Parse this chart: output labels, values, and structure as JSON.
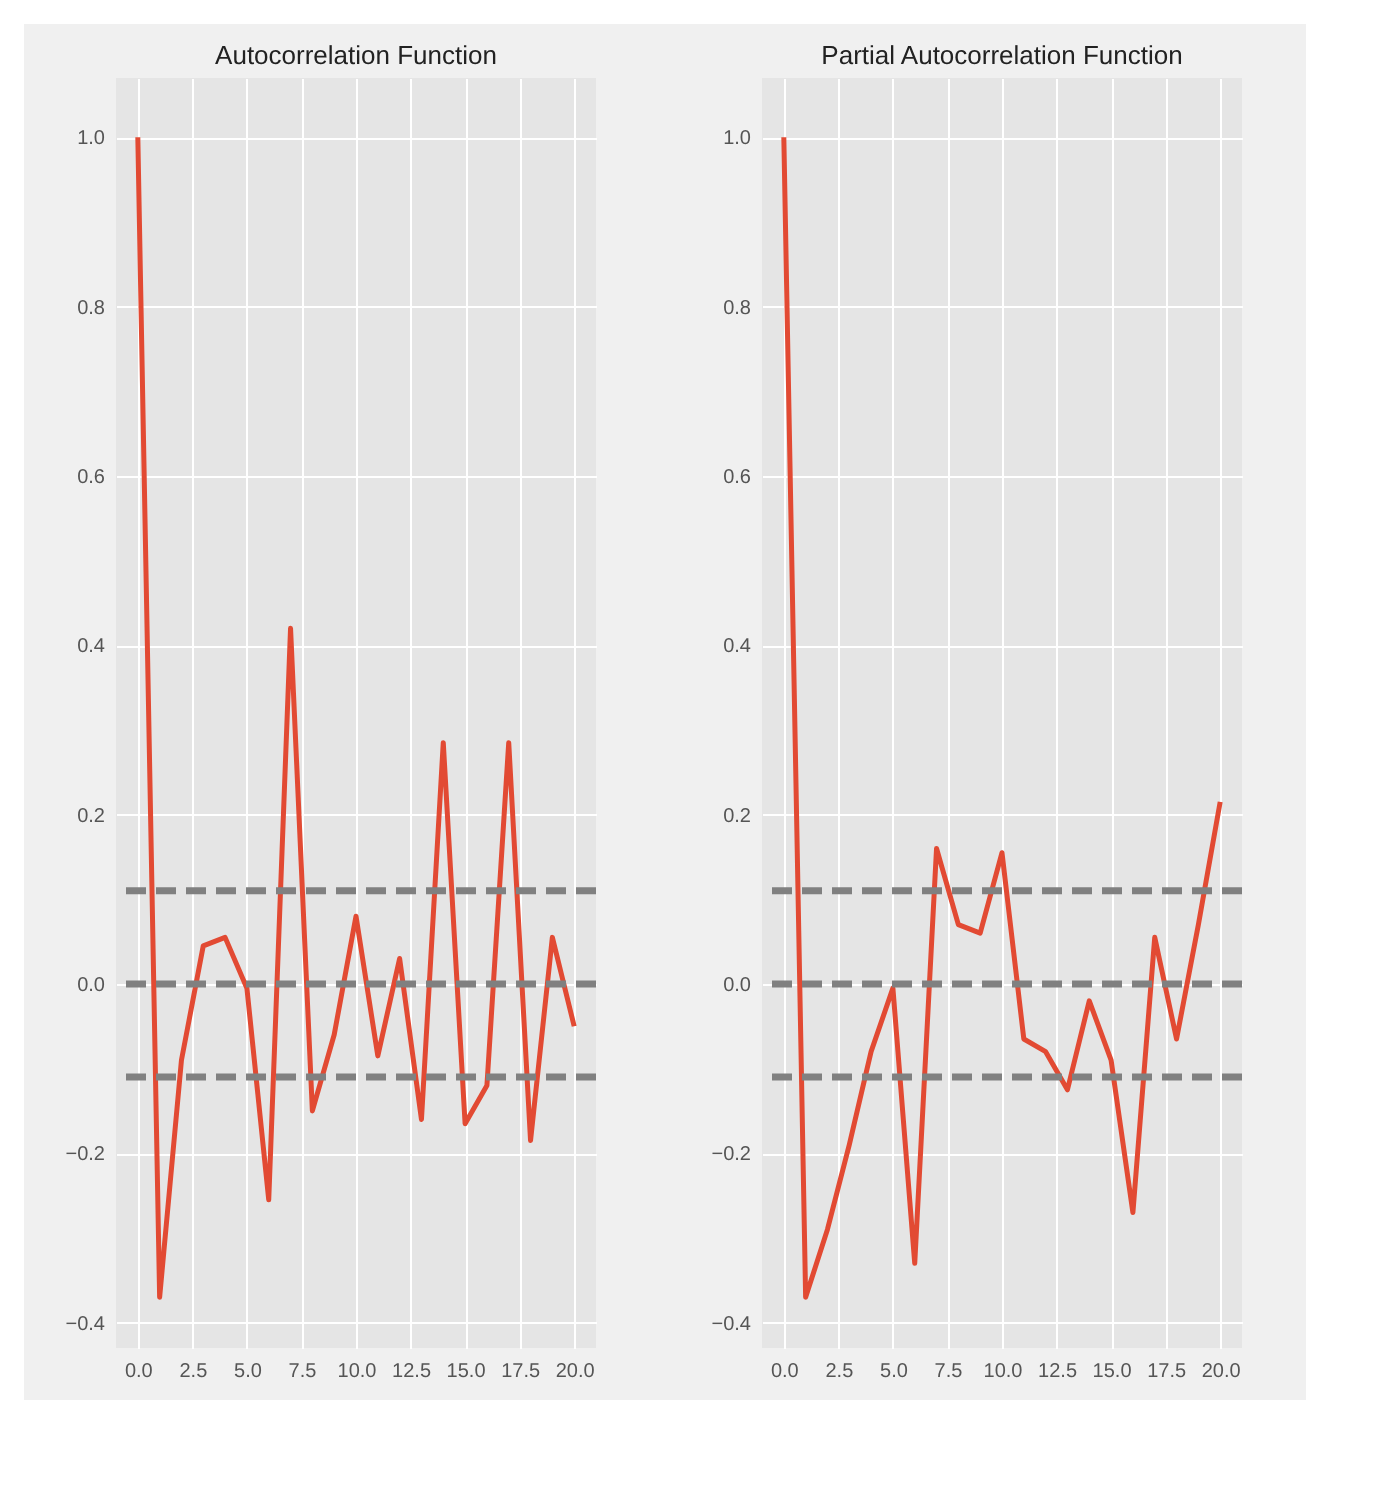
{
  "chart_data": [
    {
      "type": "line",
      "title": "Autocorrelation Function",
      "x": [
        0,
        1,
        2,
        3,
        4,
        5,
        6,
        7,
        8,
        9,
        10,
        11,
        12,
        13,
        14,
        15,
        16,
        17,
        18,
        19,
        20
      ],
      "series": [
        {
          "color": "#e24a33",
          "values": [
            1.0,
            -0.37,
            -0.09,
            0.045,
            0.055,
            -0.005,
            -0.255,
            0.42,
            -0.15,
            -0.06,
            0.08,
            -0.085,
            0.03,
            -0.16,
            0.285,
            -0.165,
            -0.12,
            0.285,
            -0.185,
            0.055,
            -0.05
          ]
        }
      ],
      "xlim": [
        -1,
        21
      ],
      "ylim": [
        -0.43,
        1.07
      ],
      "xticks": [
        {
          "value": 0,
          "label": "0.0"
        },
        {
          "value": 2.5,
          "label": "2.5"
        },
        {
          "value": 5,
          "label": "5.0"
        },
        {
          "value": 7.5,
          "label": "7.5"
        },
        {
          "value": 10,
          "label": "10.0"
        },
        {
          "value": 12.5,
          "label": "12.5"
        },
        {
          "value": 15,
          "label": "15.0"
        },
        {
          "value": 17.5,
          "label": "17.5"
        },
        {
          "value": 20,
          "label": "20.0"
        }
      ],
      "yticks": [
        {
          "value": -0.4,
          "label": "−0.4"
        },
        {
          "value": -0.2,
          "label": "−0.2"
        },
        {
          "value": 0,
          "label": "0.0"
        },
        {
          "value": 0.2,
          "label": "0.2"
        },
        {
          "value": 0.4,
          "label": "0.4"
        },
        {
          "value": 0.6,
          "label": "0.6"
        },
        {
          "value": 0.8,
          "label": "0.8"
        },
        {
          "value": 1,
          "label": "1.0"
        }
      ],
      "ref_lines": [
        {
          "axis": "y",
          "value": 0,
          "color": "#808080",
          "line_style": "dashed"
        },
        {
          "axis": "y",
          "value": 0.11,
          "color": "#808080",
          "line_style": "dashed"
        },
        {
          "axis": "y",
          "value": -0.11,
          "color": "#808080",
          "line_style": "dashed"
        }
      ],
      "grid": true,
      "line_style": "solid",
      "marker": "none"
    },
    {
      "type": "line",
      "title": "Partial Autocorrelation Function",
      "x": [
        0,
        1,
        2,
        3,
        4,
        5,
        6,
        7,
        8,
        9,
        10,
        11,
        12,
        13,
        14,
        15,
        16,
        17,
        18,
        19,
        20
      ],
      "series": [
        {
          "color": "#e24a33",
          "values": [
            1.0,
            -0.37,
            -0.29,
            -0.19,
            -0.08,
            -0.005,
            -0.33,
            0.16,
            0.07,
            0.06,
            0.155,
            -0.065,
            -0.08,
            -0.125,
            -0.02,
            -0.09,
            -0.27,
            0.055,
            -0.065,
            0.07,
            0.215
          ]
        }
      ],
      "xlim": [
        -1,
        21
      ],
      "ylim": [
        -0.43,
        1.07
      ],
      "xticks": [
        {
          "value": 0,
          "label": "0.0"
        },
        {
          "value": 2.5,
          "label": "2.5"
        },
        {
          "value": 5,
          "label": "5.0"
        },
        {
          "value": 7.5,
          "label": "7.5"
        },
        {
          "value": 10,
          "label": "10.0"
        },
        {
          "value": 12.5,
          "label": "12.5"
        },
        {
          "value": 15,
          "label": "15.0"
        },
        {
          "value": 17.5,
          "label": "17.5"
        },
        {
          "value": 20,
          "label": "20.0"
        }
      ],
      "yticks": [
        {
          "value": -0.4,
          "label": "−0.4"
        },
        {
          "value": -0.2,
          "label": "−0.2"
        },
        {
          "value": 0,
          "label": "0.0"
        },
        {
          "value": 0.2,
          "label": "0.2"
        },
        {
          "value": 0.4,
          "label": "0.4"
        },
        {
          "value": 0.6,
          "label": "0.6"
        },
        {
          "value": 0.8,
          "label": "0.8"
        },
        {
          "value": 1,
          "label": "1.0"
        }
      ],
      "ref_lines": [
        {
          "axis": "y",
          "value": 0,
          "color": "#808080",
          "line_style": "dashed"
        },
        {
          "axis": "y",
          "value": 0.11,
          "color": "#808080",
          "line_style": "dashed"
        },
        {
          "axis": "y",
          "value": -0.11,
          "color": "#808080",
          "line_style": "dashed"
        }
      ],
      "grid": true,
      "line_style": "solid",
      "marker": "none"
    }
  ]
}
